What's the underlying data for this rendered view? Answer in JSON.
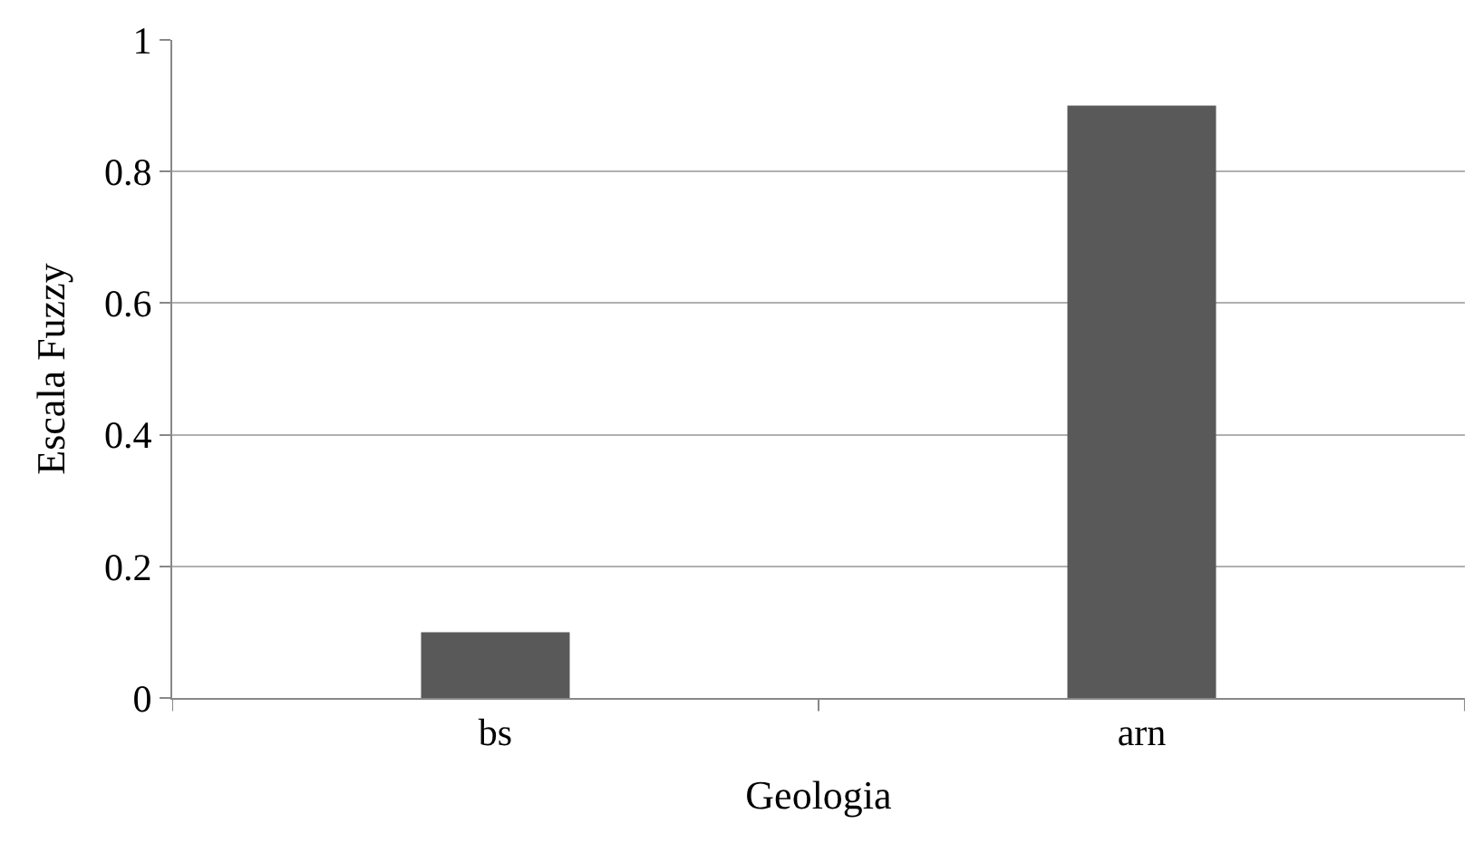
{
  "chart_data": {
    "type": "bar",
    "xlabel": "Geologia",
    "ylabel": "Escala Fuzzy",
    "categories": [
      "bs",
      "arn"
    ],
    "values": [
      0.1,
      0.9
    ],
    "color": "#595959",
    "ylim": [
      0,
      1
    ],
    "yticks": [
      0,
      0.2,
      0.4,
      0.6,
      0.8,
      1
    ],
    "grid": "y",
    "legend": false
  }
}
